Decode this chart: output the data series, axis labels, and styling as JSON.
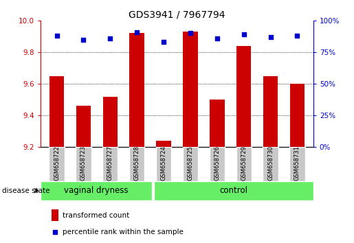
{
  "title": "GDS3941 / 7967794",
  "samples": [
    "GSM658722",
    "GSM658723",
    "GSM658727",
    "GSM658728",
    "GSM658724",
    "GSM658725",
    "GSM658726",
    "GSM658729",
    "GSM658730",
    "GSM658731"
  ],
  "transformed_counts": [
    9.65,
    9.46,
    9.52,
    9.92,
    9.24,
    9.93,
    9.5,
    9.84,
    9.65,
    9.6
  ],
  "percentile_ranks": [
    88,
    85,
    86,
    91,
    83,
    90,
    86,
    89,
    87,
    88
  ],
  "ylim_left": [
    9.2,
    10.0
  ],
  "ylim_right": [
    0,
    100
  ],
  "yticks_left": [
    9.2,
    9.4,
    9.6,
    9.8,
    10.0
  ],
  "yticks_right": [
    0,
    25,
    50,
    75,
    100
  ],
  "bar_color": "#CC0000",
  "dot_color": "#0000CC",
  "group1_label": "vaginal dryness",
  "group2_label": "control",
  "group1_count": 4,
  "group2_count": 6,
  "group_bg_color": "#66EE66",
  "sample_bg_color": "#C8C8C8",
  "disease_state_label": "disease state",
  "legend_bar_label": "transformed count",
  "legend_dot_label": "percentile rank within the sample",
  "grid_color": "#000000",
  "axis_color_left": "#CC0000",
  "axis_color_right": "#0000CC",
  "bar_width": 0.55
}
